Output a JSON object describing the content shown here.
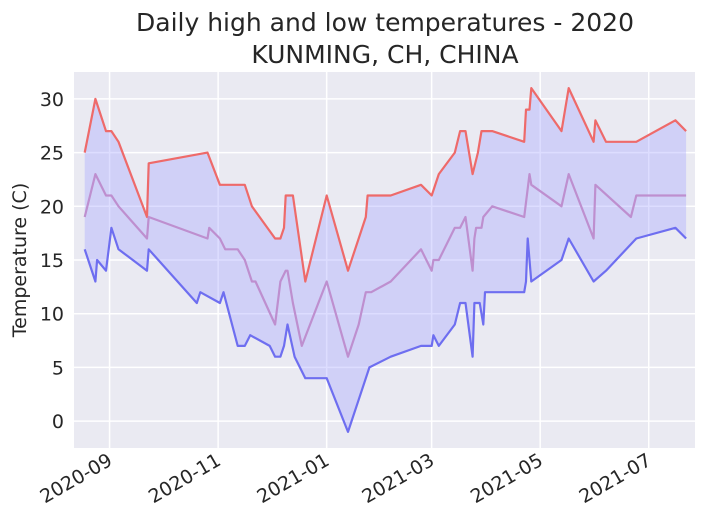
{
  "chart_data": {
    "type": "line",
    "title": "Daily high and low temperatures - 2020",
    "subtitle": "KUNMING, CH, CHINA",
    "xlabel": "",
    "ylabel": "Temperature (C)",
    "ylim": [
      -2.5,
      32.5
    ],
    "xlim": [
      "2020-08-12",
      "2021-07-27"
    ],
    "y_ticks": [
      0,
      5,
      10,
      15,
      20,
      25,
      30
    ],
    "x_ticks": [
      {
        "date": "2020-09-01",
        "label": "2020-09"
      },
      {
        "date": "2020-11-01",
        "label": "2020-11"
      },
      {
        "date": "2021-01-01",
        "label": "2021-01"
      },
      {
        "date": "2021-03-01",
        "label": "2021-03"
      },
      {
        "date": "2021-05-01",
        "label": "2021-05"
      },
      {
        "date": "2021-07-01",
        "label": "2021-07"
      }
    ],
    "grid": true,
    "fill_between": {
      "upper": "high",
      "lower": "low",
      "color": "#aaaaff",
      "opacity": 0.4
    },
    "background": "#eaeaf2",
    "series": [
      {
        "key": "high",
        "color": "#ee6a6a",
        "points": [
          [
            "2020-08-18",
            25
          ],
          [
            "2020-08-24",
            30
          ],
          [
            "2020-08-30",
            27
          ],
          [
            "2020-09-02",
            27
          ],
          [
            "2020-09-06",
            26
          ],
          [
            "2020-09-22",
            19
          ],
          [
            "2020-09-23",
            24
          ],
          [
            "2020-10-26",
            25
          ],
          [
            "2020-11-02",
            22
          ],
          [
            "2020-11-16",
            22
          ],
          [
            "2020-11-20",
            20
          ],
          [
            "2020-12-03",
            17
          ],
          [
            "2020-12-06",
            17
          ],
          [
            "2020-12-08",
            18
          ],
          [
            "2020-12-09",
            21
          ],
          [
            "2020-12-13",
            21
          ],
          [
            "2020-12-20",
            13
          ],
          [
            "2021-01-01",
            21
          ],
          [
            "2021-01-13",
            14
          ],
          [
            "2021-01-19",
            17
          ],
          [
            "2021-01-23",
            19
          ],
          [
            "2021-01-24",
            21
          ],
          [
            "2021-02-01",
            21
          ],
          [
            "2021-02-06",
            21
          ],
          [
            "2021-02-23",
            22
          ],
          [
            "2021-03-01",
            21
          ],
          [
            "2021-03-05",
            23
          ],
          [
            "2021-03-14",
            25
          ],
          [
            "2021-03-17",
            27
          ],
          [
            "2021-03-20",
            27
          ],
          [
            "2021-03-24",
            23
          ],
          [
            "2021-03-27",
            25
          ],
          [
            "2021-03-29",
            27
          ],
          [
            "2021-04-04",
            27
          ],
          [
            "2021-04-22",
            26
          ],
          [
            "2021-04-23",
            29
          ],
          [
            "2021-04-25",
            29
          ],
          [
            "2021-04-26",
            31
          ],
          [
            "2021-05-13",
            27
          ],
          [
            "2021-05-17",
            31
          ],
          [
            "2021-05-31",
            26
          ],
          [
            "2021-06-01",
            28
          ],
          [
            "2021-06-07",
            26
          ],
          [
            "2021-06-24",
            26
          ],
          [
            "2021-07-16",
            28
          ],
          [
            "2021-07-22",
            27
          ]
        ]
      },
      {
        "key": "avg",
        "color": "#be8fcf",
        "points": [
          [
            "2020-08-18",
            19
          ],
          [
            "2020-08-24",
            23
          ],
          [
            "2020-08-30",
            21
          ],
          [
            "2020-09-02",
            21
          ],
          [
            "2020-09-06",
            20
          ],
          [
            "2020-09-22",
            17
          ],
          [
            "2020-09-23",
            19
          ],
          [
            "2020-10-26",
            17
          ],
          [
            "2020-10-27",
            18
          ],
          [
            "2020-11-02",
            17
          ],
          [
            "2020-11-05",
            16
          ],
          [
            "2020-11-12",
            16
          ],
          [
            "2020-11-16",
            15
          ],
          [
            "2020-11-20",
            13
          ],
          [
            "2020-11-22",
            13
          ],
          [
            "2020-12-03",
            9
          ],
          [
            "2020-12-06",
            13
          ],
          [
            "2020-12-09",
            14
          ],
          [
            "2020-12-10",
            14
          ],
          [
            "2020-12-13",
            11
          ],
          [
            "2020-12-18",
            7
          ],
          [
            "2021-01-01",
            13
          ],
          [
            "2021-01-13",
            6
          ],
          [
            "2021-01-19",
            9
          ],
          [
            "2021-01-23",
            12
          ],
          [
            "2021-01-26",
            12
          ],
          [
            "2021-02-06",
            13
          ],
          [
            "2021-02-23",
            16
          ],
          [
            "2021-03-01",
            14
          ],
          [
            "2021-03-02",
            15
          ],
          [
            "2021-03-05",
            15
          ],
          [
            "2021-03-14",
            18
          ],
          [
            "2021-03-17",
            18
          ],
          [
            "2021-03-20",
            19
          ],
          [
            "2021-03-24",
            14
          ],
          [
            "2021-03-25",
            17
          ],
          [
            "2021-03-26",
            18
          ],
          [
            "2021-03-29",
            18
          ],
          [
            "2021-03-30",
            19
          ],
          [
            "2021-04-04",
            20
          ],
          [
            "2021-04-22",
            19
          ],
          [
            "2021-04-25",
            23
          ],
          [
            "2021-04-26",
            22
          ],
          [
            "2021-05-13",
            20
          ],
          [
            "2021-05-17",
            23
          ],
          [
            "2021-05-31",
            17
          ],
          [
            "2021-06-01",
            22
          ],
          [
            "2021-06-21",
            19
          ],
          [
            "2021-06-24",
            21
          ],
          [
            "2021-07-16",
            21
          ],
          [
            "2021-07-22",
            21
          ]
        ]
      },
      {
        "key": "low",
        "color": "#6e6ef0",
        "points": [
          [
            "2020-08-18",
            16
          ],
          [
            "2020-08-24",
            13
          ],
          [
            "2020-08-25",
            15
          ],
          [
            "2020-08-30",
            14
          ],
          [
            "2020-09-02",
            18
          ],
          [
            "2020-09-06",
            16
          ],
          [
            "2020-09-22",
            14
          ],
          [
            "2020-09-23",
            16
          ],
          [
            "2020-10-20",
            11
          ],
          [
            "2020-10-22",
            12
          ],
          [
            "2020-11-02",
            11
          ],
          [
            "2020-11-04",
            12
          ],
          [
            "2020-11-12",
            7
          ],
          [
            "2020-11-16",
            7
          ],
          [
            "2020-11-19",
            8
          ],
          [
            "2020-11-30",
            7
          ],
          [
            "2020-12-03",
            6
          ],
          [
            "2020-12-06",
            6
          ],
          [
            "2020-12-08",
            7
          ],
          [
            "2020-12-10",
            9
          ],
          [
            "2020-12-14",
            6
          ],
          [
            "2020-12-20",
            4
          ],
          [
            "2021-01-01",
            4
          ],
          [
            "2021-01-13",
            -1
          ],
          [
            "2021-01-19",
            2
          ],
          [
            "2021-01-25",
            5
          ],
          [
            "2021-02-06",
            6
          ],
          [
            "2021-02-23",
            7
          ],
          [
            "2021-03-01",
            7
          ],
          [
            "2021-03-02",
            8
          ],
          [
            "2021-03-05",
            7
          ],
          [
            "2021-03-14",
            9
          ],
          [
            "2021-03-17",
            11
          ],
          [
            "2021-03-20",
            11
          ],
          [
            "2021-03-24",
            6
          ],
          [
            "2021-03-25",
            11
          ],
          [
            "2021-03-28",
            11
          ],
          [
            "2021-03-30",
            9
          ],
          [
            "2021-03-31",
            12
          ],
          [
            "2021-04-04",
            12
          ],
          [
            "2021-04-22",
            12
          ],
          [
            "2021-04-23",
            13
          ],
          [
            "2021-04-24",
            17
          ],
          [
            "2021-04-26",
            13
          ],
          [
            "2021-05-13",
            15
          ],
          [
            "2021-05-17",
            17
          ],
          [
            "2021-05-31",
            13
          ],
          [
            "2021-06-07",
            14
          ],
          [
            "2021-06-24",
            17
          ],
          [
            "2021-07-16",
            18
          ],
          [
            "2021-07-22",
            17
          ]
        ]
      }
    ]
  }
}
